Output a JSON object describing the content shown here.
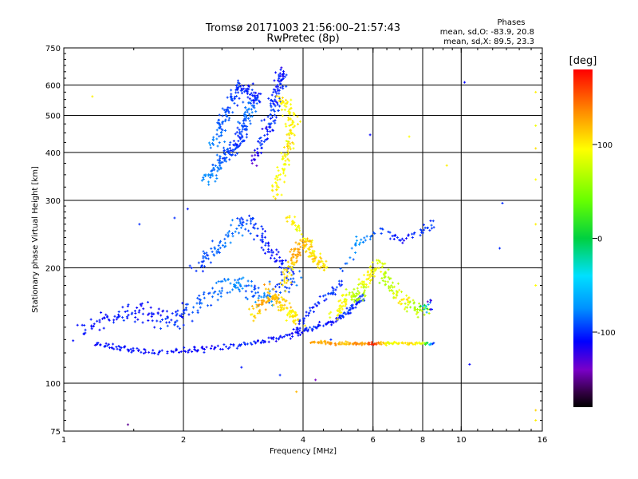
{
  "chart_data": {
    "type": "scatter",
    "title": "Tromsø 20171003 21:56:00–21:57:43",
    "subtitle": "RwPretec (8p)",
    "stats": {
      "heading": "Phases",
      "line_o": "mean, sd,O: -83.9, 20.8",
      "line_x": "mean, sd,X:  89.5, 23.3"
    },
    "xlabel": "Frequency [MHz]",
    "ylabel": "Stationary phase Virtual Height [km]",
    "x_scale": "log",
    "y_scale": "log",
    "xlim": [
      1,
      16
    ],
    "ylim": [
      75,
      750
    ],
    "x_ticks": [
      {
        "value": 1,
        "label": "1"
      },
      {
        "value": 2,
        "label": "2"
      },
      {
        "value": 4,
        "label": "4"
      },
      {
        "value": 6,
        "label": "6"
      },
      {
        "value": 8,
        "label": "8"
      },
      {
        "value": 10,
        "label": "10"
      },
      {
        "value": 16,
        "label": "16"
      }
    ],
    "x_grid": [
      2,
      4,
      6,
      8,
      10
    ],
    "y_ticks": [
      {
        "value": 75,
        "label": "75"
      },
      {
        "value": 100,
        "label": "100"
      },
      {
        "value": 200,
        "label": "200"
      },
      {
        "value": 300,
        "label": "300"
      },
      {
        "value": 400,
        "label": "400"
      },
      {
        "value": 500,
        "label": "500"
      },
      {
        "value": 600,
        "label": "600"
      },
      {
        "value": 750,
        "label": "750"
      }
    ],
    "y_grid": [
      100,
      200,
      300,
      400,
      500,
      600
    ],
    "colorbar": {
      "label": "[deg]",
      "range": [
        -180,
        180
      ],
      "ticks": [
        {
          "value": 100,
          "label": "100"
        },
        {
          "value": 0,
          "label": "0"
        },
        {
          "value": -100,
          "label": "-100"
        }
      ],
      "stops": [
        {
          "value": 180,
          "color": "#ff0000"
        },
        {
          "value": 135,
          "color": "#ff8c00"
        },
        {
          "value": 95,
          "color": "#ffff00"
        },
        {
          "value": 40,
          "color": "#66ff00"
        },
        {
          "value": 0,
          "color": "#00d040"
        },
        {
          "value": -40,
          "color": "#00e0ff"
        },
        {
          "value": -75,
          "color": "#0090ff"
        },
        {
          "value": -110,
          "color": "#0000ff"
        },
        {
          "value": -140,
          "color": "#7a00c8"
        },
        {
          "value": -165,
          "color": "#300040"
        },
        {
          "value": -180,
          "color": "#000000"
        }
      ]
    },
    "series": [
      {
        "trace": [
          [
            1.2,
            127
          ],
          [
            1.3,
            125
          ],
          [
            1.4,
            123
          ],
          [
            1.5,
            122
          ],
          [
            1.7,
            121
          ],
          [
            1.9,
            121
          ],
          [
            2.1,
            122
          ],
          [
            2.3,
            123
          ],
          [
            2.6,
            125
          ],
          [
            2.9,
            127
          ],
          [
            3.2,
            129
          ],
          [
            3.5,
            131
          ],
          [
            3.8,
            134
          ],
          [
            4.0,
            137
          ],
          [
            4.3,
            140
          ],
          [
            4.6,
            143
          ],
          [
            4.9,
            147
          ],
          [
            5.1,
            152
          ],
          [
            5.3,
            157
          ],
          [
            5.5,
            163
          ],
          [
            5.7,
            170
          ]
        ],
        "phase": [
          -110,
          -108,
          -105,
          -108,
          -106,
          -110,
          -108,
          -112,
          -105,
          -100,
          -110,
          -108,
          -112,
          -105,
          -100,
          -108,
          -110,
          -95,
          -100,
          -108,
          -90
        ],
        "spread": 0.03,
        "repeat": 2
      },
      {
        "trace": [
          [
            1.1,
            135
          ],
          [
            1.25,
            145
          ],
          [
            1.4,
            150
          ],
          [
            1.55,
            155
          ],
          [
            1.7,
            150
          ],
          [
            1.85,
            145
          ],
          [
            2.0,
            152
          ],
          [
            2.2,
            162
          ],
          [
            2.4,
            172
          ],
          [
            2.6,
            182
          ],
          [
            2.8,
            185
          ],
          [
            3.0,
            175
          ],
          [
            3.2,
            165
          ],
          [
            3.5,
            180
          ],
          [
            3.8,
            190
          ]
        ],
        "phase": [
          -105,
          -110,
          -100,
          -108,
          -112,
          -95,
          -105,
          -90,
          -85,
          -80,
          -75,
          -95,
          -70,
          -100,
          -85
        ],
        "spread": 0.09,
        "repeat": 3
      },
      {
        "trace": [
          [
            2.15,
            200
          ],
          [
            2.3,
            215
          ],
          [
            2.5,
            230
          ],
          [
            2.7,
            250
          ],
          [
            2.9,
            270
          ],
          [
            3.1,
            245
          ],
          [
            3.3,
            225
          ],
          [
            3.5,
            205
          ],
          [
            3.7,
            198
          ]
        ],
        "phase": [
          -100,
          -90,
          -85,
          -80,
          -95,
          -100,
          -105,
          -110,
          -95
        ],
        "spread": 0.08,
        "repeat": 3
      },
      {
        "trace": [
          [
            2.3,
            340
          ],
          [
            2.45,
            370
          ],
          [
            2.6,
            400
          ],
          [
            2.75,
            430
          ],
          [
            2.85,
            470
          ],
          [
            2.95,
            520
          ],
          [
            3.05,
            560
          ],
          [
            2.8,
            600
          ],
          [
            2.65,
            540
          ],
          [
            2.5,
            480
          ],
          [
            2.4,
            420
          ]
        ],
        "phase": [
          -75,
          -85,
          -95,
          -100,
          -90,
          -80,
          -105,
          -100,
          -95,
          -90,
          -80
        ],
        "spread": 0.06,
        "repeat": 5
      },
      {
        "trace": [
          [
            3.0,
            380
          ],
          [
            3.15,
            420
          ],
          [
            3.25,
            460
          ],
          [
            3.35,
            510
          ],
          [
            3.45,
            560
          ],
          [
            3.55,
            620
          ],
          [
            3.5,
            650
          ],
          [
            3.3,
            480
          ]
        ],
        "phase": [
          -130,
          -100,
          -110,
          -95,
          -105,
          -100,
          -115,
          -90
        ],
        "spread": 0.05,
        "repeat": 3
      },
      {
        "trace": [
          [
            3.4,
            310
          ],
          [
            3.5,
            340
          ],
          [
            3.6,
            380
          ],
          [
            3.7,
            420
          ],
          [
            3.8,
            480
          ],
          [
            3.65,
            520
          ],
          [
            3.55,
            560
          ],
          [
            3.75,
            400
          ]
        ],
        "phase": [
          100,
          95,
          90,
          110,
          100,
          95,
          105,
          85
        ],
        "spread": 0.05,
        "repeat": 3
      },
      {
        "trace": [
          [
            3.6,
            180
          ],
          [
            3.7,
            200
          ],
          [
            3.8,
            215
          ],
          [
            3.9,
            225
          ],
          [
            4.05,
            235
          ],
          [
            4.2,
            220
          ],
          [
            4.35,
            210
          ],
          [
            4.5,
            200
          ],
          [
            3.9,
            250
          ],
          [
            3.7,
            275
          ]
        ],
        "phase": [
          110,
          100,
          130,
          125,
          120,
          105,
          115,
          100,
          90,
          105
        ],
        "spread": 0.05,
        "repeat": 3
      },
      {
        "trace": [
          [
            3.0,
            150
          ],
          [
            3.15,
            160
          ],
          [
            3.3,
            170
          ],
          [
            3.45,
            165
          ],
          [
            3.6,
            158
          ],
          [
            3.75,
            150
          ],
          [
            3.9,
            145
          ],
          [
            3.2,
            180
          ]
        ],
        "phase": [
          100,
          130,
          120,
          115,
          105,
          95,
          110,
          125
        ],
        "spread": 0.06,
        "repeat": 3
      },
      {
        "trace": [
          [
            4.8,
            150
          ],
          [
            5.0,
            160
          ],
          [
            5.2,
            170
          ],
          [
            5.4,
            165
          ],
          [
            5.6,
            175
          ],
          [
            5.8,
            185
          ],
          [
            6.0,
            195
          ],
          [
            6.2,
            205
          ],
          [
            6.5,
            185
          ],
          [
            6.8,
            175
          ],
          [
            7.2,
            165
          ],
          [
            7.6,
            158
          ],
          [
            8.0,
            155
          ],
          [
            8.4,
            160
          ]
        ],
        "phase": [
          90,
          100,
          85,
          60,
          70,
          95,
          100,
          80,
          65,
          70,
          110,
          60,
          75,
          -130
        ],
        "spread": 0.06,
        "repeat": 3
      },
      {
        "trace": [
          [
            4.2,
            128
          ],
          [
            4.5,
            128
          ],
          [
            4.8,
            127
          ],
          [
            5.1,
            127
          ],
          [
            5.4,
            127
          ],
          [
            5.7,
            127
          ],
          [
            6.0,
            127
          ],
          [
            6.3,
            127
          ],
          [
            6.6,
            127
          ],
          [
            7.0,
            127
          ],
          [
            7.5,
            127
          ],
          [
            8.0,
            127
          ],
          [
            8.5,
            127
          ]
        ],
        "phase": [
          130,
          120,
          135,
          110,
          140,
          125,
          170,
          120,
          85,
          100,
          110,
          80,
          -100
        ],
        "spread": 0.015,
        "repeat": 2
      },
      {
        "trace": [
          [
            3.8,
            140
          ],
          [
            4.1,
            150
          ],
          [
            4.4,
            162
          ],
          [
            4.7,
            172
          ],
          [
            4.9,
            180
          ],
          [
            5.4,
            230
          ],
          [
            5.7,
            240
          ],
          [
            6.5,
            250
          ],
          [
            7.2,
            235
          ],
          [
            8.0,
            250
          ],
          [
            8.5,
            260
          ]
        ],
        "phase": [
          -110,
          -100,
          -105,
          -95,
          -100,
          -70,
          -80,
          -100,
          -110,
          -95,
          -100
        ],
        "spread": 0.04,
        "repeat": 2
      },
      {
        "trace": [
          [
            1.18,
            560
          ],
          [
            1.55,
            260
          ],
          [
            1.9,
            270
          ],
          [
            2.05,
            285
          ],
          [
            3.85,
            95
          ],
          [
            4.3,
            102
          ],
          [
            4.7,
            130
          ],
          [
            5.9,
            445
          ],
          [
            7.4,
            440
          ],
          [
            9.2,
            370
          ],
          [
            10.2,
            610
          ],
          [
            10.5,
            112
          ],
          [
            12.5,
            225
          ],
          [
            12.7,
            295
          ],
          [
            15.4,
            575
          ],
          [
            15.4,
            470
          ],
          [
            15.4,
            410
          ],
          [
            15.4,
            340
          ],
          [
            15.4,
            260
          ],
          [
            15.4,
            180
          ],
          [
            15.4,
            85
          ],
          [
            15.4,
            80
          ],
          [
            1.45,
            78
          ],
          [
            2.8,
            110
          ],
          [
            3.5,
            105
          ]
        ],
        "phase": [
          100,
          -100,
          -100,
          -105,
          120,
          -140,
          -100,
          -110,
          95,
          100,
          -110,
          -110,
          -100,
          -100,
          100,
          90,
          105,
          95,
          100,
          95,
          110,
          100,
          -150,
          -105,
          -100
        ],
        "spread": 0.0,
        "repeat": 1
      }
    ]
  }
}
